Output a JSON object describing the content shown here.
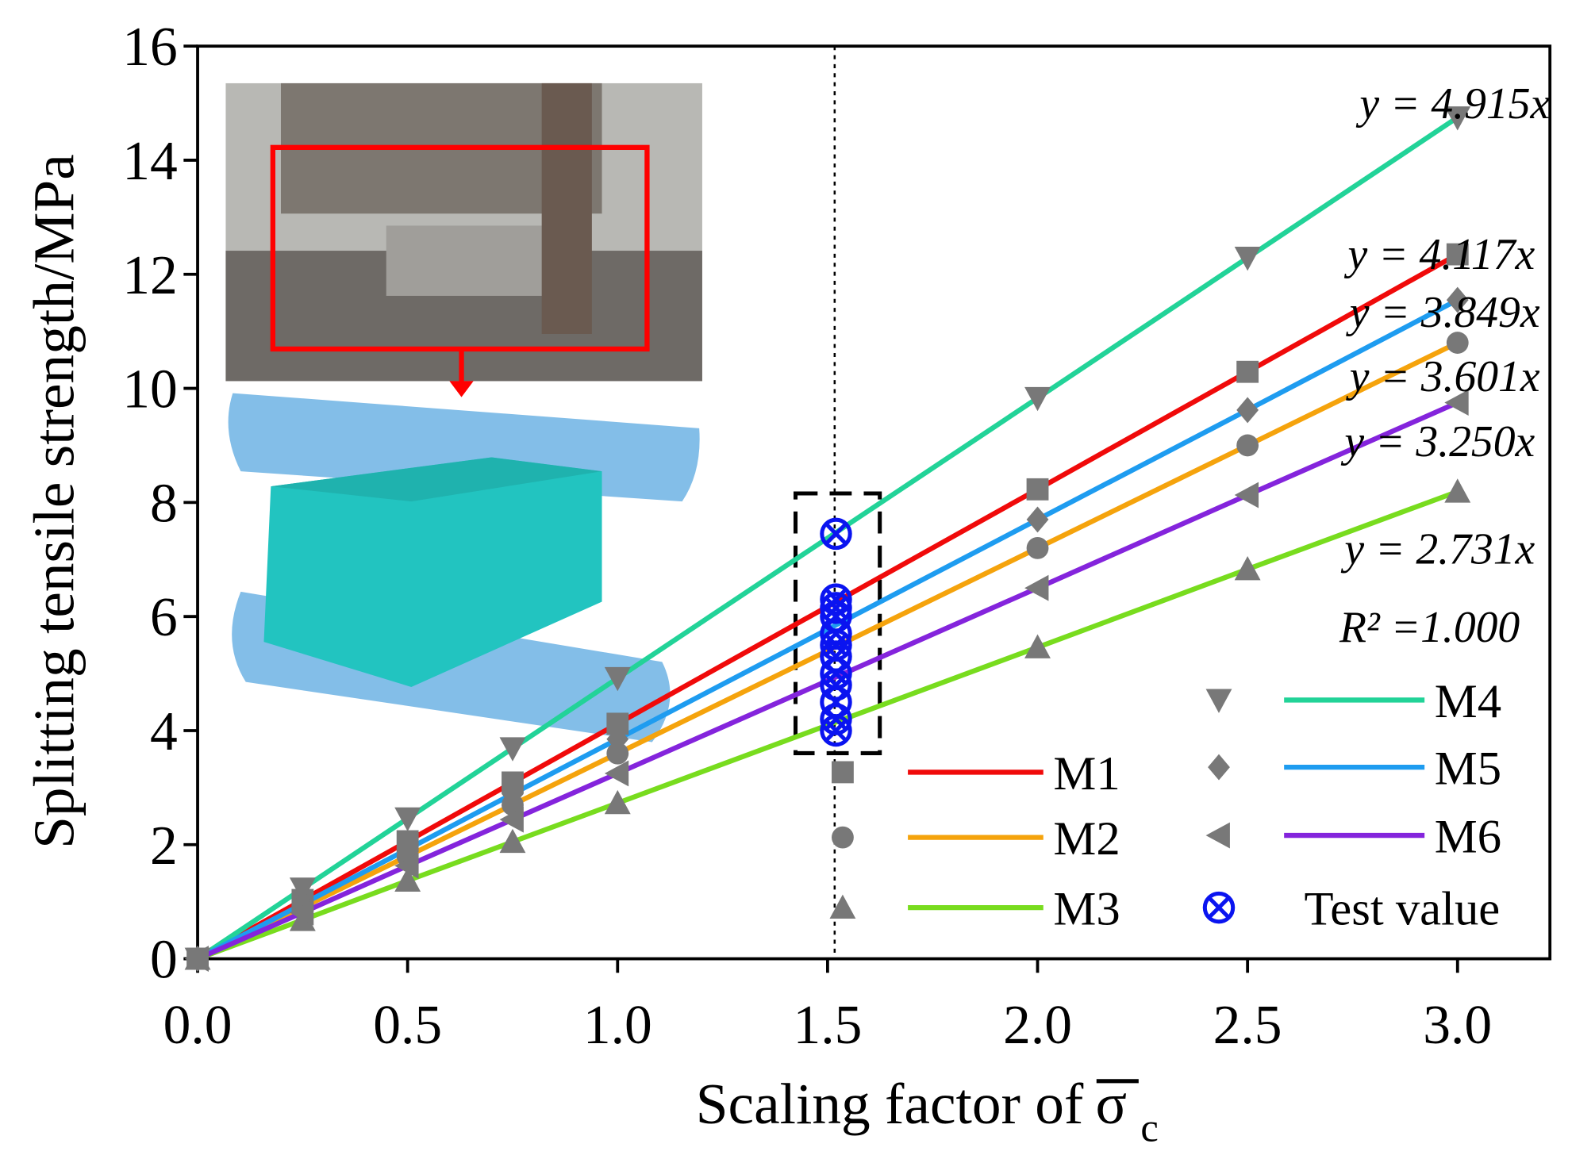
{
  "chart_data": {
    "type": "line",
    "xlabel": "Scaling factor of",
    "xlabel_symbol": "σ",
    "xlabel_subscript": "c",
    "ylabel": "Splitting tensile strength/MPa",
    "xlim": [
      0,
      3.22
    ],
    "ylim": [
      0,
      16
    ],
    "xticks": [
      {
        "value": 0,
        "label": "0.0"
      },
      0.5,
      {
        "value": 1,
        "label": "1.0"
      },
      1.5,
      {
        "value": 2,
        "label": "2.0"
      },
      2.5,
      {
        "value": 3,
        "label": "3.0"
      }
    ],
    "yticks": [
      0,
      2,
      4,
      6,
      8,
      10,
      12,
      14,
      16
    ],
    "marker_color": "#787878",
    "series": [
      {
        "name": "M1",
        "color": "#f00a0a",
        "marker": "square",
        "x": [
          0,
          0.25,
          0.5,
          0.75,
          1,
          2,
          2.5,
          3
        ],
        "values": [
          0,
          1.03,
          2.06,
          3.09,
          4.12,
          8.23,
          10.29,
          12.35
        ]
      },
      {
        "name": "M2",
        "color": "#f5a30c",
        "marker": "circle",
        "x": [
          0,
          0.25,
          0.5,
          0.75,
          1,
          2,
          2.5,
          3
        ],
        "values": [
          0,
          0.9,
          1.8,
          2.7,
          3.6,
          7.2,
          9.0,
          10.8
        ]
      },
      {
        "name": "M3",
        "color": "#78dc1e",
        "marker": "triangle-up",
        "x": [
          0,
          0.25,
          0.5,
          0.75,
          1,
          2,
          2.5,
          3
        ],
        "values": [
          0,
          0.68,
          1.37,
          2.05,
          2.73,
          5.46,
          6.83,
          8.19
        ]
      },
      {
        "name": "M4",
        "color": "#22d398",
        "marker": "triangle-down",
        "x": [
          0,
          0.25,
          0.5,
          0.75,
          1,
          2,
          2.5,
          3
        ],
        "values": [
          0,
          1.23,
          2.46,
          3.69,
          4.92,
          9.83,
          12.29,
          14.75
        ]
      },
      {
        "name": "M5",
        "color": "#1e9cf0",
        "marker": "diamond",
        "x": [
          0,
          0.25,
          0.5,
          0.75,
          1,
          2,
          2.5,
          3
        ],
        "values": [
          0,
          0.96,
          1.92,
          2.89,
          3.85,
          7.7,
          9.62,
          11.55
        ]
      },
      {
        "name": "M6",
        "color": "#8424dc",
        "marker": "triangle-left",
        "x": [
          0,
          0.25,
          0.5,
          0.75,
          1,
          2,
          2.5,
          3
        ],
        "values": [
          0,
          0.81,
          1.63,
          2.44,
          3.25,
          6.5,
          8.13,
          9.75
        ]
      },
      {
        "name": "Test value",
        "color": "#0a14f0",
        "marker": "circle-x",
        "x": [
          1.52,
          1.52,
          1.52,
          1.52,
          1.52,
          1.52,
          1.52,
          1.52,
          1.52,
          1.52,
          1.52,
          1.52
        ],
        "values": [
          7.45,
          6.3,
          6.15,
          6.0,
          5.7,
          5.5,
          5.3,
          5.0,
          4.8,
          4.5,
          4.2,
          4.0
        ]
      }
    ],
    "annotations": [
      "y = 4.915x",
      "y = 4.117x",
      "y = 3.849x",
      "y = 3.601x",
      "y = 3.250x",
      "y = 2.731x",
      "R² =1.000"
    ]
  }
}
